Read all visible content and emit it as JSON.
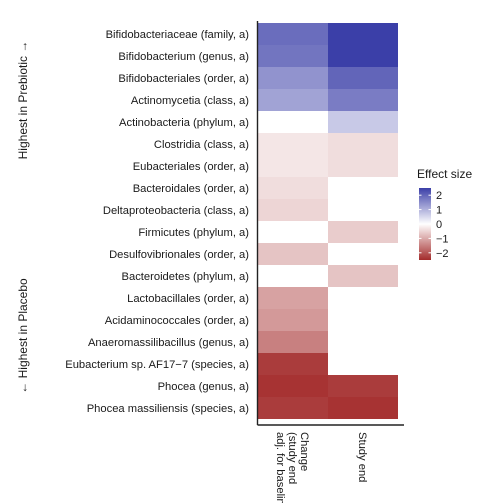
{
  "chart_data": {
    "type": "heatmap",
    "columns": [
      "Change\n(study end\nadj. for baseline)",
      "Study end"
    ],
    "rows": [
      "Bifidobacteriaceae (family, a)",
      "Bifidobacterium (genus, a)",
      "Bifidobacteriales (order, a)",
      "Actinomycetia (class, a)",
      "Actinobacteria (phylum, a)",
      "Clostridia (class, a)",
      "Eubacteriales (order, a)",
      "Bacteroidales (order, a)",
      "Deltaproteobacteria (class, a)",
      "Firmicutes (phylum, a)",
      "Desulfovibrionales (order, a)",
      "Bacteroidetes (phylum, a)",
      "Lactobacillales (order, a)",
      "Acidaminococcales (order, a)",
      "Anaeromassilibacillus (genus, a)",
      "Eubacterium sp. AF17−7 (species, a)",
      "Phocea (genus, a)",
      "Phocea massiliensis (species, a)"
    ],
    "values": [
      [
        1.9,
        2.5
      ],
      [
        1.8,
        2.5
      ],
      [
        1.4,
        2.0
      ],
      [
        1.2,
        1.7
      ],
      [
        null,
        0.7
      ],
      [
        -0.3,
        -0.4
      ],
      [
        -0.3,
        -0.4
      ],
      [
        -0.4,
        null
      ],
      [
        -0.5,
        null
      ],
      [
        null,
        -0.6
      ],
      [
        -0.7,
        null
      ],
      [
        null,
        -0.7
      ],
      [
        -1.1,
        null
      ],
      [
        -1.2,
        null
      ],
      [
        -1.5,
        null
      ],
      [
        -2.3,
        null
      ],
      [
        -2.4,
        -2.3
      ],
      [
        -2.3,
        -2.4
      ]
    ],
    "left_labels": {
      "top": "Highest in Prebiotic →",
      "bottom": "← Highest in Placebo"
    },
    "legend": {
      "title": "Effect size",
      "ticks": [
        "2",
        "1",
        "0",
        "−1",
        "−2"
      ],
      "range": [
        -2.5,
        2.5
      ],
      "high_color": "#3b3fa8",
      "mid_color": "#ffffff",
      "low_color": "#a32b2b"
    }
  }
}
